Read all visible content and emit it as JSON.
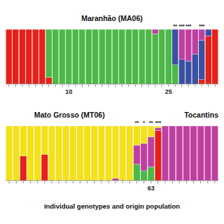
{
  "chart_data": [
    {
      "type": "bar",
      "stacked": true,
      "title": "Maranhão (MA06)",
      "grid": false,
      "tick_labels": "x",
      "ylim": [
        0,
        1
      ],
      "categories": [
        null,
        null,
        null,
        null,
        null,
        null,
        null,
        null,
        null,
        "10",
        null,
        null,
        null,
        null,
        null,
        null,
        null,
        null,
        null,
        null,
        null,
        null,
        null,
        null,
        "25",
        null,
        null,
        null,
        null,
        null,
        null,
        null
      ],
      "annotations": [
        null,
        null,
        null,
        null,
        null,
        null,
        null,
        null,
        null,
        null,
        null,
        null,
        null,
        null,
        null,
        null,
        null,
        null,
        null,
        null,
        null,
        null,
        null,
        null,
        null,
        "**",
        "***",
        "***",
        null,
        "***",
        null,
        null
      ],
      "series": [
        {
          "color": "#e8201a",
          "values": [
            1.0,
            1.0,
            1.0,
            1.0,
            1.0,
            1.0,
            0.12,
            0.0,
            0.0,
            0.0,
            0.0,
            0.0,
            0.0,
            0.0,
            0.0,
            0.0,
            0.0,
            0.0,
            0.0,
            0.0,
            0.0,
            0.0,
            0.0,
            0.0,
            0.0,
            0.0,
            0.0,
            0.0,
            0.0,
            0.08,
            0.88,
            1.0
          ]
        },
        {
          "color": "#4cb847",
          "values": [
            0.0,
            0.0,
            0.0,
            0.0,
            0.0,
            0.0,
            0.88,
            1.0,
            1.0,
            1.0,
            1.0,
            1.0,
            1.0,
            1.0,
            1.0,
            1.0,
            1.0,
            1.0,
            1.0,
            1.0,
            1.0,
            1.0,
            0.92,
            1.0,
            1.0,
            0.35,
            0.0,
            0.0,
            0.0,
            0.0,
            0.0,
            0.0
          ]
        },
        {
          "color": "#3a50a0",
          "values": [
            0.0,
            0.0,
            0.0,
            0.0,
            0.0,
            0.0,
            0.0,
            0.0,
            0.0,
            0.0,
            0.0,
            0.0,
            0.0,
            0.0,
            0.0,
            0.0,
            0.0,
            0.0,
            0.0,
            0.0,
            0.0,
            0.0,
            0.0,
            0.0,
            0.0,
            0.65,
            0.45,
            0.42,
            0.55,
            0.72,
            0.12,
            0.0
          ]
        },
        {
          "color": "#bf3fa0",
          "values": [
            0.0,
            0.0,
            0.0,
            0.0,
            0.0,
            0.0,
            0.0,
            0.0,
            0.0,
            0.0,
            0.0,
            0.0,
            0.0,
            0.0,
            0.0,
            0.0,
            0.0,
            0.0,
            0.0,
            0.0,
            0.0,
            0.0,
            0.08,
            0.0,
            0.0,
            0.0,
            0.55,
            0.58,
            0.45,
            0.2,
            0.0,
            0.0
          ]
        },
        {
          "color": "#f4e11a",
          "values": [
            0.0,
            0.0,
            0.0,
            0.0,
            0.0,
            0.0,
            0.0,
            0.0,
            0.0,
            0.0,
            0.0,
            0.0,
            0.0,
            0.0,
            0.0,
            0.0,
            0.0,
            0.0,
            0.0,
            0.0,
            0.0,
            0.0,
            0.0,
            0.0,
            0.0,
            0.0,
            0.0,
            0.0,
            0.0,
            0.0,
            0.0,
            0.0
          ]
        }
      ]
    },
    {
      "type": "bar",
      "stacked": true,
      "title": "Mato Grosso (MT06)",
      "subtitle": "Tocantins",
      "xlabel": "Individual genotypes and origin population",
      "grid": false,
      "tick_labels": "x",
      "ylim": [
        0,
        1
      ],
      "categories": [
        null,
        null,
        null,
        null,
        null,
        null,
        null,
        null,
        null,
        null,
        null,
        null,
        null,
        null,
        null,
        null,
        null,
        null,
        null,
        null,
        "63",
        null,
        null,
        null,
        null,
        null,
        null,
        null,
        null,
        null
      ],
      "annotations": [
        null,
        null,
        null,
        null,
        null,
        null,
        null,
        null,
        null,
        null,
        null,
        null,
        null,
        null,
        null,
        null,
        null,
        null,
        "**",
        "*",
        "**",
        "***",
        null,
        null,
        null,
        null,
        null,
        null,
        null,
        null
      ],
      "series": [
        {
          "color": "#e8201a",
          "values": [
            0.0,
            0.0,
            0.45,
            0.0,
            0.0,
            0.48,
            0.0,
            0.0,
            0.0,
            0.0,
            0.0,
            0.0,
            0.0,
            0.0,
            0.0,
            0.0,
            0.0,
            0.0,
            0.0,
            0.0,
            0.0,
            0.92,
            0.0,
            0.0,
            0.0,
            0.0,
            0.0,
            0.0,
            0.0,
            0.0
          ]
        },
        {
          "color": "#4cb847",
          "values": [
            0.0,
            0.0,
            0.0,
            0.0,
            0.0,
            0.0,
            0.0,
            0.0,
            0.0,
            0.0,
            0.0,
            0.0,
            0.0,
            0.0,
            0.0,
            0.0,
            0.0,
            0.0,
            0.3,
            0.18,
            0.25,
            0.0,
            0.0,
            0.0,
            0.0,
            0.0,
            0.0,
            0.0,
            0.0,
            0.0
          ]
        },
        {
          "color": "#3a50a0",
          "values": [
            0.0,
            0.0,
            0.0,
            0.0,
            0.0,
            0.0,
            0.0,
            0.0,
            0.0,
            0.0,
            0.0,
            0.0,
            0.0,
            0.0,
            0.0,
            0.0,
            0.0,
            0.0,
            0.0,
            0.0,
            0.0,
            0.0,
            0.0,
            0.0,
            0.0,
            0.0,
            0.0,
            0.0,
            0.0,
            0.0
          ]
        },
        {
          "color": "#bf3fa0",
          "values": [
            0.0,
            0.0,
            0.0,
            0.0,
            0.0,
            0.0,
            0.0,
            0.0,
            0.0,
            0.0,
            0.0,
            0.0,
            0.0,
            0.0,
            0.0,
            0.04,
            0.0,
            0.0,
            0.35,
            0.5,
            0.55,
            0.05,
            1.0,
            1.0,
            1.0,
            1.0,
            1.0,
            1.0,
            1.0,
            1.0
          ]
        },
        {
          "color": "#f4e11a",
          "values": [
            1.0,
            1.0,
            0.55,
            1.0,
            1.0,
            0.52,
            1.0,
            1.0,
            1.0,
            1.0,
            1.0,
            1.0,
            1.0,
            1.0,
            1.0,
            0.96,
            1.0,
            1.0,
            0.35,
            0.32,
            0.2,
            0.03,
            0.0,
            0.0,
            0.0,
            0.0,
            0.0,
            0.0,
            0.0,
            0.0
          ]
        }
      ]
    }
  ]
}
